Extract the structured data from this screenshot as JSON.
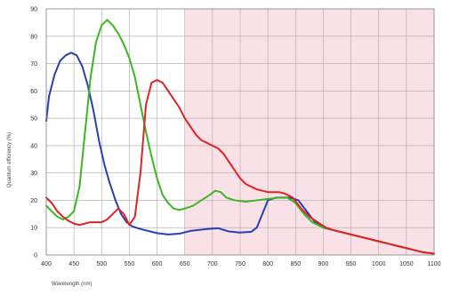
{
  "chart_data": {
    "type": "line",
    "title": "",
    "xlabel": "Wavelength (nm)",
    "ylabel": "Quantum efficiency (%)",
    "xlim": [
      400,
      1100
    ],
    "ylim": [
      0,
      90
    ],
    "x_ticks": [
      400,
      450,
      500,
      550,
      600,
      650,
      700,
      750,
      800,
      850,
      900,
      950,
      1000,
      1050,
      1100
    ],
    "y_ticks": [
      0,
      10,
      20,
      30,
      40,
      50,
      60,
      70,
      80,
      90
    ],
    "grid": true,
    "shaded_region": {
      "x_start": 650,
      "x_end": 1100,
      "color": "#f9e1e7"
    },
    "series": [
      {
        "color": "#2a3fb0",
        "points": [
          [
            400,
            49
          ],
          [
            405,
            58
          ],
          [
            415,
            66
          ],
          [
            425,
            71
          ],
          [
            435,
            73
          ],
          [
            445,
            74
          ],
          [
            455,
            73
          ],
          [
            465,
            69
          ],
          [
            475,
            62
          ],
          [
            485,
            53
          ],
          [
            495,
            42
          ],
          [
            505,
            33
          ],
          [
            515,
            26
          ],
          [
            525,
            20
          ],
          [
            535,
            15
          ],
          [
            545,
            12
          ],
          [
            555,
            10.5
          ],
          [
            565,
            9.8
          ],
          [
            580,
            9
          ],
          [
            600,
            8
          ],
          [
            620,
            7.5
          ],
          [
            640,
            7.8
          ],
          [
            660,
            8.8
          ],
          [
            690,
            9.5
          ],
          [
            710,
            9.8
          ],
          [
            730,
            8.6
          ],
          [
            750,
            8.2
          ],
          [
            770,
            8.5
          ],
          [
            780,
            10
          ],
          [
            790,
            15
          ],
          [
            800,
            20
          ],
          [
            815,
            21
          ],
          [
            840,
            21
          ],
          [
            855,
            20
          ],
          [
            870,
            16
          ],
          [
            885,
            12
          ],
          [
            900,
            10
          ],
          [
            920,
            9
          ],
          [
            940,
            8
          ],
          [
            960,
            7
          ],
          [
            980,
            6
          ],
          [
            1000,
            5
          ],
          [
            1020,
            4
          ],
          [
            1040,
            3
          ],
          [
            1060,
            2
          ],
          [
            1080,
            1
          ],
          [
            1100,
            0.5
          ]
        ]
      },
      {
        "color": "#3db524",
        "points": [
          [
            400,
            18
          ],
          [
            410,
            16
          ],
          [
            420,
            14
          ],
          [
            430,
            13
          ],
          [
            440,
            14
          ],
          [
            450,
            16
          ],
          [
            460,
            25
          ],
          [
            470,
            45
          ],
          [
            480,
            65
          ],
          [
            490,
            78
          ],
          [
            500,
            84
          ],
          [
            510,
            86
          ],
          [
            520,
            84
          ],
          [
            530,
            81
          ],
          [
            540,
            77
          ],
          [
            550,
            72
          ],
          [
            560,
            65
          ],
          [
            570,
            55
          ],
          [
            580,
            45
          ],
          [
            590,
            36
          ],
          [
            600,
            28
          ],
          [
            610,
            22
          ],
          [
            620,
            19
          ],
          [
            630,
            17
          ],
          [
            640,
            16.5
          ],
          [
            650,
            17
          ],
          [
            665,
            18
          ],
          [
            680,
            20
          ],
          [
            695,
            22
          ],
          [
            705,
            23.5
          ],
          [
            715,
            23
          ],
          [
            725,
            21
          ],
          [
            740,
            20
          ],
          [
            760,
            19.5
          ],
          [
            780,
            20
          ],
          [
            800,
            20.5
          ],
          [
            820,
            21
          ],
          [
            835,
            21
          ],
          [
            850,
            19
          ],
          [
            865,
            15
          ],
          [
            880,
            12
          ],
          [
            900,
            10
          ],
          [
            920,
            9
          ],
          [
            940,
            8
          ],
          [
            960,
            7
          ],
          [
            980,
            6
          ],
          [
            1000,
            5
          ],
          [
            1020,
            4
          ],
          [
            1040,
            3
          ],
          [
            1060,
            2
          ],
          [
            1080,
            1
          ],
          [
            1100,
            0.5
          ]
        ]
      },
      {
        "color": "#e02424",
        "points": [
          [
            400,
            21
          ],
          [
            410,
            19
          ],
          [
            420,
            16
          ],
          [
            430,
            14
          ],
          [
            440,
            12.5
          ],
          [
            450,
            11.5
          ],
          [
            460,
            11
          ],
          [
            470,
            11.5
          ],
          [
            480,
            12
          ],
          [
            490,
            12
          ],
          [
            500,
            12
          ],
          [
            510,
            13
          ],
          [
            520,
            15
          ],
          [
            530,
            17
          ],
          [
            540,
            15
          ],
          [
            550,
            11
          ],
          [
            560,
            14
          ],
          [
            570,
            30
          ],
          [
            580,
            55
          ],
          [
            590,
            63
          ],
          [
            600,
            64
          ],
          [
            610,
            63
          ],
          [
            620,
            60
          ],
          [
            630,
            57
          ],
          [
            640,
            54
          ],
          [
            650,
            50
          ],
          [
            660,
            47
          ],
          [
            670,
            44
          ],
          [
            680,
            42
          ],
          [
            690,
            41
          ],
          [
            700,
            40
          ],
          [
            710,
            39
          ],
          [
            720,
            37
          ],
          [
            730,
            34
          ],
          [
            740,
            31
          ],
          [
            750,
            28
          ],
          [
            760,
            26
          ],
          [
            770,
            25
          ],
          [
            780,
            24
          ],
          [
            790,
            23.5
          ],
          [
            800,
            23
          ],
          [
            810,
            23
          ],
          [
            820,
            23
          ],
          [
            830,
            22.5
          ],
          [
            845,
            21
          ],
          [
            860,
            17
          ],
          [
            875,
            14
          ],
          [
            890,
            12
          ],
          [
            905,
            10
          ],
          [
            920,
            9
          ],
          [
            940,
            8
          ],
          [
            960,
            7
          ],
          [
            980,
            6
          ],
          [
            1000,
            5
          ],
          [
            1020,
            4
          ],
          [
            1040,
            3
          ],
          [
            1060,
            2
          ],
          [
            1080,
            1
          ],
          [
            1100,
            0.5
          ]
        ]
      }
    ]
  }
}
